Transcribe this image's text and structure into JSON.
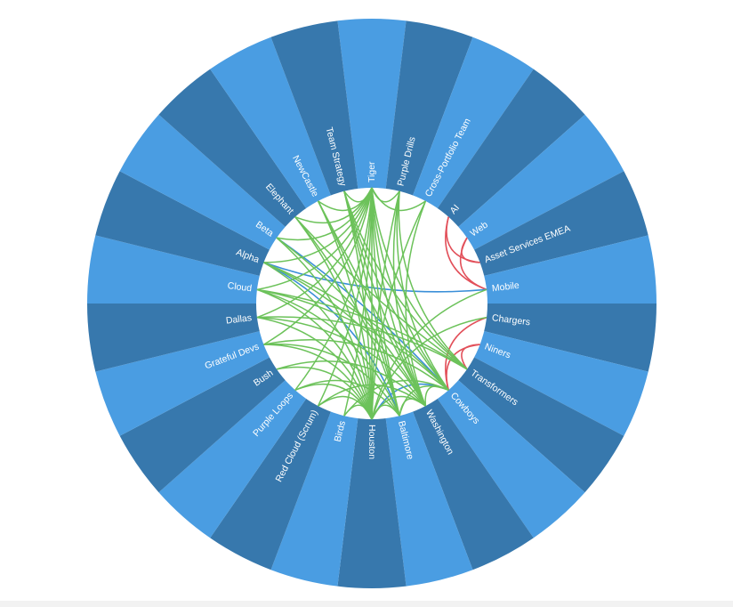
{
  "colors": {
    "background": "#ffffff",
    "segment_light": "#4a9de2",
    "segment_dark": "#3778ad",
    "inner_circle": "#ffffff",
    "label": "#ffffff",
    "link_green": "#6cc25a",
    "link_blue": "#3a8fd8",
    "link_red": "#e2505a"
  },
  "nodes": [
    "Tiger",
    "Purple Drills",
    "Cross-Portfolio Team",
    "AI",
    "Web",
    "Asset Services EMEA",
    "Mobile",
    "Chargers",
    "Niners",
    "Transformers",
    "Cowboys",
    "Washington",
    "Baltimore",
    "Houston",
    "Birds",
    "Red Cloud (Scrum)",
    "Purple Loops",
    "Bush",
    "Grateful Devs",
    "Dallas",
    "Cloud",
    "Alpha",
    "Beta",
    "Elephant",
    "NewCastle",
    "Team Strategy"
  ],
  "links": [
    {
      "source": "Web",
      "target": "Mobile",
      "color": "red"
    },
    {
      "source": "AI",
      "target": "Mobile",
      "color": "red"
    },
    {
      "source": "AI",
      "target": "Asset Services EMEA",
      "color": "red"
    },
    {
      "source": "Web",
      "target": "Asset Services EMEA",
      "color": "red"
    },
    {
      "source": "Niners",
      "target": "Cowboys",
      "color": "red"
    },
    {
      "source": "Chargers",
      "target": "Cowboys",
      "color": "red"
    },
    {
      "source": "Niners",
      "target": "Transformers",
      "color": "red"
    },
    {
      "source": "Alpha",
      "target": "Mobile",
      "color": "blue"
    },
    {
      "source": "Beta",
      "target": "Cowboys",
      "color": "blue"
    },
    {
      "source": "Alpha",
      "target": "Baltimore",
      "color": "blue"
    },
    {
      "source": "Houston",
      "target": "Cowboys",
      "color": "blue"
    },
    {
      "source": "Tiger",
      "target": "Houston",
      "color": "green"
    },
    {
      "source": "Tiger",
      "target": "Baltimore",
      "color": "green"
    },
    {
      "source": "Tiger",
      "target": "Washington",
      "color": "green"
    },
    {
      "source": "Tiger",
      "target": "Birds",
      "color": "green"
    },
    {
      "source": "Tiger",
      "target": "Cowboys",
      "color": "green"
    },
    {
      "source": "Tiger",
      "target": "Transformers",
      "color": "green"
    },
    {
      "source": "Tiger",
      "target": "Red Cloud (Scrum)",
      "color": "green"
    },
    {
      "source": "Tiger",
      "target": "Purple Loops",
      "color": "green"
    },
    {
      "source": "Tiger",
      "target": "Grateful Devs",
      "color": "green"
    },
    {
      "source": "Tiger",
      "target": "Dallas",
      "color": "green"
    },
    {
      "source": "Tiger",
      "target": "Cloud",
      "color": "green"
    },
    {
      "source": "Tiger",
      "target": "Alpha",
      "color": "green"
    },
    {
      "source": "Tiger",
      "target": "Beta",
      "color": "green"
    },
    {
      "source": "Tiger",
      "target": "Elephant",
      "color": "green"
    },
    {
      "source": "Tiger",
      "target": "NewCastle",
      "color": "green"
    },
    {
      "source": "Tiger",
      "target": "Team Strategy",
      "color": "green"
    },
    {
      "source": "Tiger",
      "target": "Purple Drills",
      "color": "green"
    },
    {
      "source": "Tiger",
      "target": "Cross-Portfolio Team",
      "color": "green"
    },
    {
      "source": "Purple Drills",
      "target": "Houston",
      "color": "green"
    },
    {
      "source": "Purple Drills",
      "target": "Washington",
      "color": "green"
    },
    {
      "source": "Purple Drills",
      "target": "Cowboys",
      "color": "green"
    },
    {
      "source": "Purple Drills",
      "target": "Transformers",
      "color": "green"
    },
    {
      "source": "Team Strategy",
      "target": "Houston",
      "color": "green"
    },
    {
      "source": "Team Strategy",
      "target": "Baltimore",
      "color": "green"
    },
    {
      "source": "Team Strategy",
      "target": "Washington",
      "color": "green"
    },
    {
      "source": "Team Strategy",
      "target": "Cowboys",
      "color": "green"
    },
    {
      "source": "Team Strategy",
      "target": "Transformers",
      "color": "green"
    },
    {
      "source": "NewCastle",
      "target": "Houston",
      "color": "green"
    },
    {
      "source": "NewCastle",
      "target": "Baltimore",
      "color": "green"
    },
    {
      "source": "NewCastle",
      "target": "Washington",
      "color": "green"
    },
    {
      "source": "Elephant",
      "target": "Houston",
      "color": "green"
    },
    {
      "source": "Elephant",
      "target": "Baltimore",
      "color": "green"
    },
    {
      "source": "Elephant",
      "target": "Transformers",
      "color": "green"
    },
    {
      "source": "Beta",
      "target": "Houston",
      "color": "green"
    },
    {
      "source": "Beta",
      "target": "Washington",
      "color": "green"
    },
    {
      "source": "Alpha",
      "target": "Houston",
      "color": "green"
    },
    {
      "source": "Alpha",
      "target": "Washington",
      "color": "green"
    },
    {
      "source": "Alpha",
      "target": "Cowboys",
      "color": "green"
    },
    {
      "source": "Cloud",
      "target": "Houston",
      "color": "green"
    },
    {
      "source": "Cloud",
      "target": "Baltimore",
      "color": "green"
    },
    {
      "source": "Cloud",
      "target": "Cowboys",
      "color": "green"
    },
    {
      "source": "Cloud",
      "target": "Transformers",
      "color": "green"
    },
    {
      "source": "Dallas",
      "target": "Houston",
      "color": "green"
    },
    {
      "source": "Dallas",
      "target": "Washington",
      "color": "green"
    },
    {
      "source": "Dallas",
      "target": "Transformers",
      "color": "green"
    },
    {
      "source": "Grateful Devs",
      "target": "Houston",
      "color": "green"
    },
    {
      "source": "Grateful Devs",
      "target": "Baltimore",
      "color": "green"
    },
    {
      "source": "Grateful Devs",
      "target": "Cowboys",
      "color": "green"
    },
    {
      "source": "Bush",
      "target": "Houston",
      "color": "green"
    },
    {
      "source": "Bush",
      "target": "Washington",
      "color": "green"
    },
    {
      "source": "Purple Loops",
      "target": "Houston",
      "color": "green"
    },
    {
      "source": "Purple Loops",
      "target": "Baltimore",
      "color": "green"
    },
    {
      "source": "Red Cloud (Scrum)",
      "target": "Houston",
      "color": "green"
    },
    {
      "source": "Red Cloud (Scrum)",
      "target": "Washington",
      "color": "green"
    },
    {
      "source": "Birds",
      "target": "Houston",
      "color": "green"
    },
    {
      "source": "Birds",
      "target": "Cowboys",
      "color": "green"
    },
    {
      "source": "Houston",
      "target": "Baltimore",
      "color": "green"
    },
    {
      "source": "Houston",
      "target": "Washington",
      "color": "green"
    },
    {
      "source": "Baltimore",
      "target": "Washington",
      "color": "green"
    },
    {
      "source": "Baltimore",
      "target": "Cowboys",
      "color": "green"
    },
    {
      "source": "Washington",
      "target": "Cowboys",
      "color": "green"
    },
    {
      "source": "Chargers",
      "target": "Houston",
      "color": "green"
    },
    {
      "source": "Mobile",
      "target": "Houston",
      "color": "green"
    },
    {
      "source": "Cross-Portfolio Team",
      "target": "Houston",
      "color": "green"
    },
    {
      "source": "Cross-Portfolio Team",
      "target": "Washington",
      "color": "green"
    }
  ]
}
